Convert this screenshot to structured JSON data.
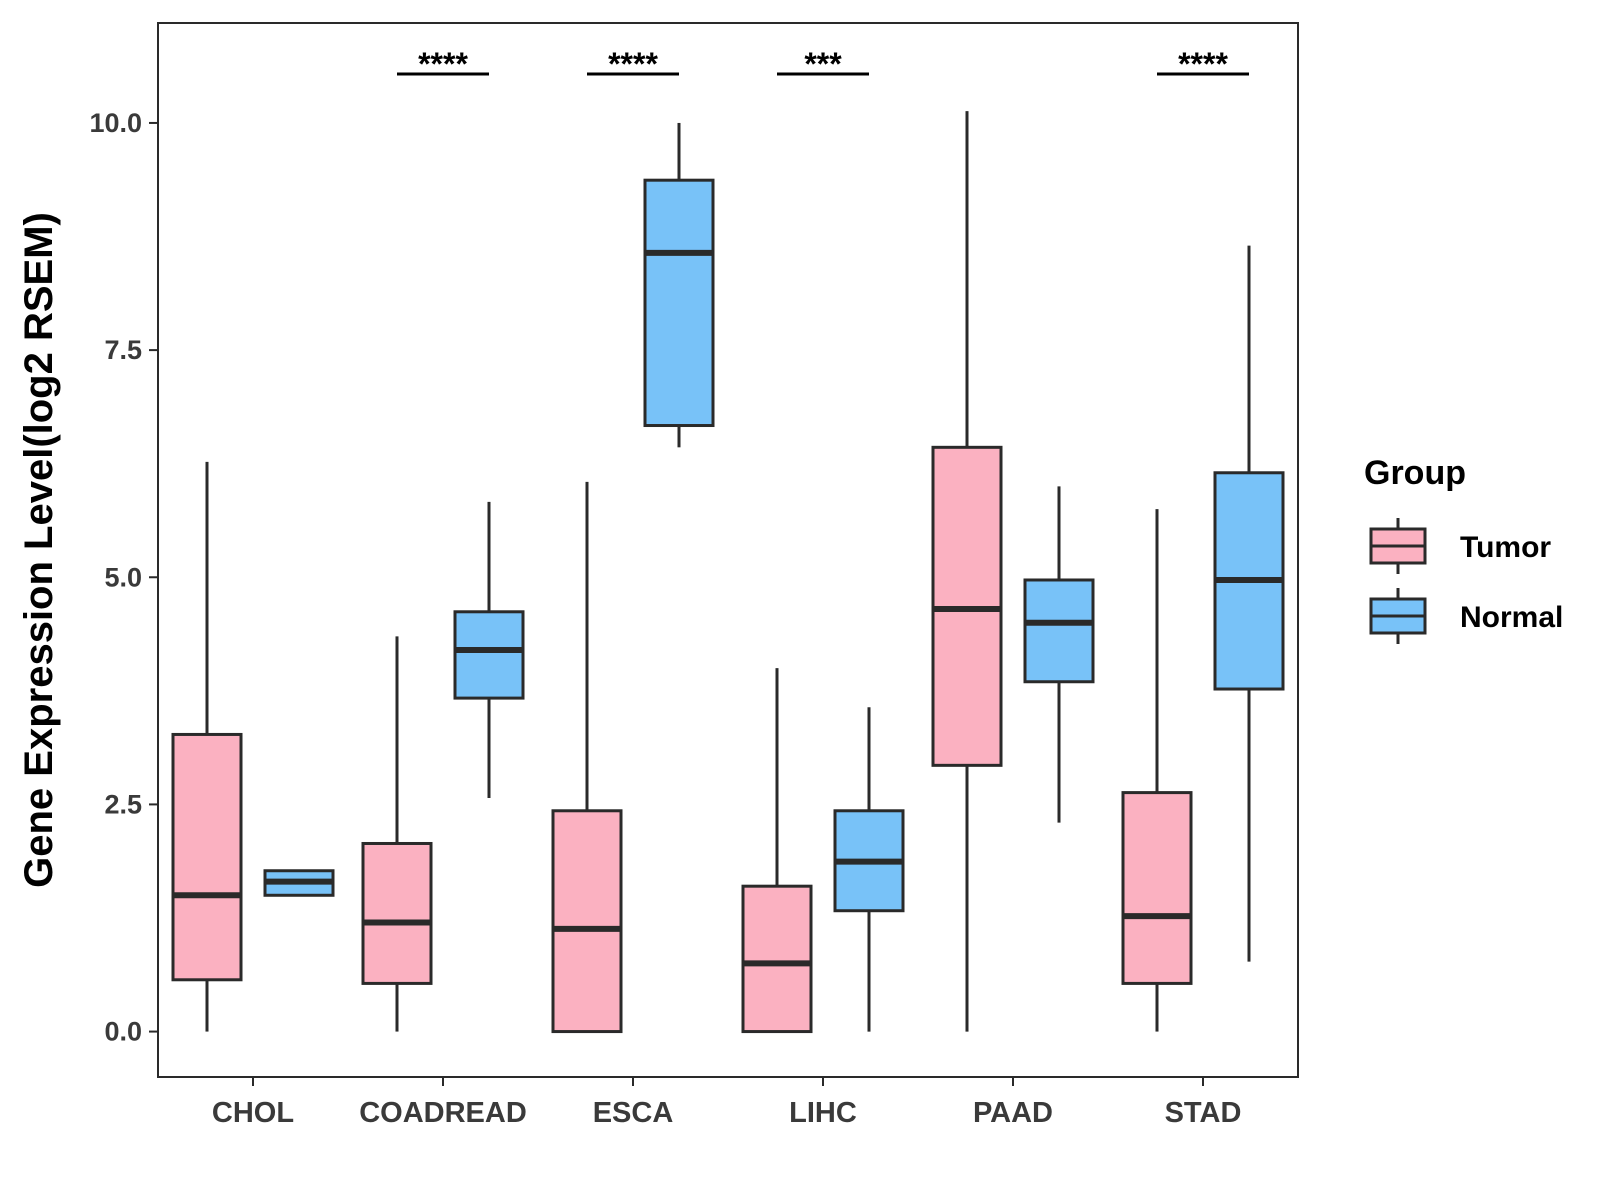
{
  "chart_data": {
    "type": "boxplot",
    "title": "",
    "xlabel": "",
    "ylabel": "Gene Expression Level(log2 RSEM)",
    "ylim": [
      -0.5,
      11.1
    ],
    "yticks": [
      "0.0",
      "2.5",
      "5.0",
      "7.5",
      "10.0"
    ],
    "ytick_values": [
      0,
      2.5,
      5,
      7.5,
      10
    ],
    "categories": [
      "CHOL",
      "COADREAD",
      "ESCA",
      "LIHC",
      "PAAD",
      "STAD"
    ],
    "legend": {
      "title": "Group",
      "position": "right",
      "entries": [
        "Tumor",
        "Normal"
      ]
    },
    "colors": {
      "Tumor": "#FBB1C1",
      "Normal": "#78C2F8",
      "outline": "#2a2a2a"
    },
    "series": [
      {
        "name": "Tumor",
        "boxes": [
          {
            "min": 0.0,
            "q1": 0.57,
            "median": 1.5,
            "q3": 3.27,
            "max": 6.27
          },
          {
            "min": 0.0,
            "q1": 0.53,
            "median": 1.2,
            "q3": 2.07,
            "max": 4.35
          },
          {
            "min": 0.0,
            "q1": 0.0,
            "median": 1.13,
            "q3": 2.43,
            "max": 6.05
          },
          {
            "min": 0.0,
            "q1": 0.0,
            "median": 0.75,
            "q3": 1.6,
            "max": 4.0
          },
          {
            "min": 0.0,
            "q1": 2.93,
            "median": 4.65,
            "q3": 6.43,
            "max": 10.13
          },
          {
            "min": 0.0,
            "q1": 0.53,
            "median": 1.27,
            "q3": 2.63,
            "max": 5.75
          }
        ]
      },
      {
        "name": "Normal",
        "boxes": [
          {
            "min": 1.5,
            "q1": 1.5,
            "median": 1.65,
            "q3": 1.77,
            "max": 1.77
          },
          {
            "min": 2.57,
            "q1": 3.67,
            "median": 4.2,
            "q3": 4.62,
            "max": 5.83
          },
          {
            "min": 6.43,
            "q1": 6.67,
            "median": 8.57,
            "q3": 9.37,
            "max": 10.0
          },
          {
            "min": 0.0,
            "q1": 1.33,
            "median": 1.87,
            "q3": 2.43,
            "max": 3.57
          },
          {
            "min": 2.3,
            "q1": 3.85,
            "median": 4.5,
            "q3": 4.97,
            "max": 6.0
          },
          {
            "min": 0.77,
            "q1": 3.77,
            "median": 4.97,
            "q3": 6.15,
            "max": 8.65
          }
        ]
      }
    ],
    "significance": [
      {
        "category": "COADREAD",
        "label": "****"
      },
      {
        "category": "ESCA",
        "label": "****"
      },
      {
        "category": "LIHC",
        "label": "***"
      },
      {
        "category": "STAD",
        "label": "****"
      }
    ]
  }
}
